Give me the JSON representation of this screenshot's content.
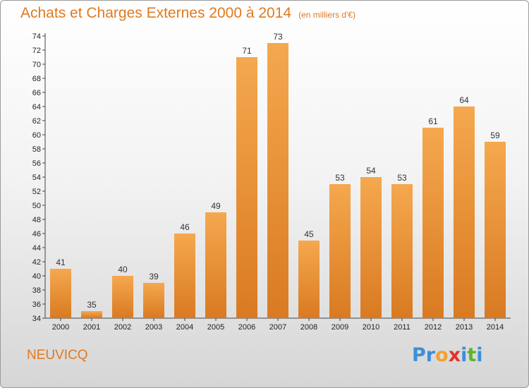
{
  "header": {
    "title": "Achats et Charges Externes 2000 à 2014",
    "unit": "(en milliers d'€)"
  },
  "footer": {
    "commune": "NEUVICQ",
    "brand_letters": [
      "P",
      "r",
      "o",
      "x",
      "i",
      "t",
      "i"
    ],
    "brand_colors": [
      "#3b8fd9",
      "#3b8fd9",
      "#f2a12c",
      "#e2332a",
      "#3b8fd9",
      "#5bb52c",
      "#3b8fd9"
    ]
  },
  "chart_data": {
    "type": "bar",
    "title": "Achats et Charges Externes 2000 à 2014",
    "subtitle": "(en milliers d'€)",
    "xlabel": "",
    "ylabel": "",
    "categories": [
      "2000",
      "2001",
      "2002",
      "2003",
      "2004",
      "2005",
      "2006",
      "2007",
      "2008",
      "2009",
      "2010",
      "2011",
      "2012",
      "2013",
      "2014"
    ],
    "values": [
      41,
      35,
      40,
      39,
      46,
      49,
      71,
      73,
      45,
      53,
      54,
      53,
      61,
      64,
      59
    ],
    "ylim": [
      34,
      74
    ],
    "ytick_step": 2,
    "grid": false,
    "bar_color_top": "#f5a84e",
    "bar_color_bottom": "#d97a22"
  }
}
